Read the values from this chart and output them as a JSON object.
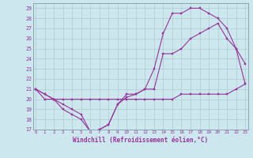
{
  "title": "",
  "xlabel": "Windchill (Refroidissement éolien,°C)",
  "background_color": "#cce8ee",
  "grid_color": "#aacccc",
  "line_color": "#993399",
  "x_hours": [
    0,
    1,
    2,
    3,
    4,
    5,
    6,
    7,
    8,
    9,
    10,
    11,
    12,
    13,
    14,
    15,
    16,
    17,
    18,
    19,
    20,
    21,
    22,
    23
  ],
  "series1": [
    21.0,
    20.5,
    20.0,
    19.5,
    19.0,
    18.5,
    16.8,
    17.0,
    17.5,
    19.5,
    20.5,
    20.5,
    21.0,
    23.0,
    26.5,
    28.5,
    28.5,
    29.0,
    29.0,
    28.5,
    28.0,
    27.0,
    25.0,
    23.5
  ],
  "series2": [
    21.0,
    20.5,
    20.0,
    19.0,
    18.5,
    18.0,
    16.8,
    17.0,
    17.5,
    19.5,
    20.2,
    20.5,
    21.0,
    21.0,
    24.5,
    24.5,
    25.0,
    26.0,
    26.5,
    27.0,
    27.5,
    26.0,
    25.0,
    21.5
  ],
  "series3": [
    21.0,
    20.0,
    20.0,
    20.0,
    20.0,
    20.0,
    20.0,
    20.0,
    20.0,
    20.0,
    20.0,
    20.0,
    20.0,
    20.0,
    20.0,
    20.0,
    20.5,
    20.5,
    20.5,
    20.5,
    20.5,
    20.5,
    21.0,
    21.5
  ],
  "ylim": [
    17,
    29.5
  ],
  "yticks": [
    17,
    18,
    19,
    20,
    21,
    22,
    23,
    24,
    25,
    26,
    27,
    28,
    29
  ],
  "xlim": [
    -0.3,
    23.3
  ]
}
